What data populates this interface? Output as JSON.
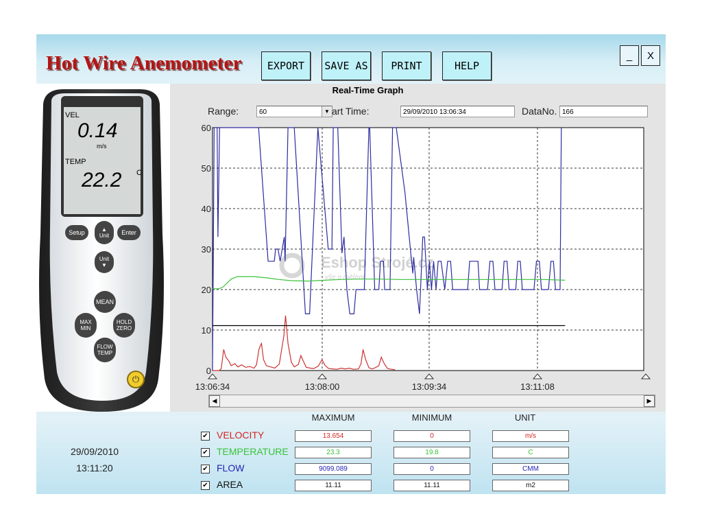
{
  "app": {
    "title": "Hot Wire Anemometer",
    "minimize_label": "_",
    "close_label": "X"
  },
  "toolbar": {
    "export_label": "EXPORT",
    "saveas_label": "SAVE AS",
    "print_label": "PRINT",
    "help_label": "HELP"
  },
  "device": {
    "vel_label": "VEL",
    "vel_value": "0.14",
    "vel_unit": "m/s",
    "temp_label": "TEMP",
    "temp_value": "22.2",
    "temp_unit": "C",
    "btn_setup": "Setup",
    "btn_unit": "Unit",
    "btn_enter": "Enter",
    "btn_unit2": "Unit",
    "btn_mean": "MEAN",
    "btn_maxmin_1": "MAX",
    "btn_maxmin_2": "MIN",
    "btn_hold_1": "HOLD",
    "btn_hold_2": "ZERO",
    "btn_flow_1": "FLOW",
    "btn_flow_2": "TEMP",
    "date": "29/09/2010",
    "time": "13:11:20"
  },
  "graph": {
    "title": "Real-Time Graph",
    "range_label": "Range:",
    "range_value": "60",
    "start_label": "art Time:",
    "start_value": "29/09/2010 13:06:34",
    "datano_label": "DataNo.",
    "datano_value": "166"
  },
  "watermark": {
    "name": "Eshop Strojé.cz",
    "tagline": "vše o měření"
  },
  "chart_data": {
    "type": "line",
    "ylim": [
      0,
      60
    ],
    "yticks": [
      "0",
      "10",
      "20",
      "30",
      "40",
      "50",
      "60"
    ],
    "xticks": [
      "13:06:34",
      "13:08:00",
      "13:09:34",
      "13:11:08"
    ],
    "grid": true,
    "series": [
      {
        "name": "FLOW",
        "color": "#2b2ba0",
        "values": [
          [
            0,
            0
          ],
          [
            0.4,
            60
          ],
          [
            1.1,
            60
          ],
          [
            1.3,
            33
          ],
          [
            1.7,
            60
          ],
          [
            2,
            60
          ],
          [
            11.1,
            60
          ],
          [
            13.4,
            27
          ],
          [
            14.9,
            27
          ],
          [
            15.2,
            30
          ],
          [
            15.8,
            30
          ],
          [
            16.3,
            27
          ],
          [
            17.3,
            33
          ],
          [
            17.5,
            27
          ],
          [
            18.2,
            60
          ],
          [
            19.5,
            60
          ],
          [
            19.7,
            60
          ],
          [
            22.4,
            14
          ],
          [
            23.4,
            14
          ],
          [
            25.4,
            60
          ],
          [
            27.9,
            30
          ],
          [
            28.8,
            30
          ],
          [
            29.1,
            60
          ],
          [
            29.7,
            60
          ],
          [
            30.2,
            60
          ],
          [
            31.2,
            29
          ],
          [
            31.7,
            33
          ],
          [
            32.4,
            20
          ],
          [
            33.1,
            14
          ],
          [
            34.1,
            14
          ],
          [
            34.6,
            20
          ],
          [
            36.6,
            20
          ],
          [
            37.7,
            60
          ],
          [
            37.9,
            60
          ],
          [
            39.1,
            20
          ],
          [
            40.1,
            20
          ],
          [
            40.5,
            27
          ],
          [
            41.2,
            27
          ],
          [
            41.5,
            20
          ],
          [
            42.8,
            20
          ],
          [
            43.4,
            60
          ],
          [
            43.9,
            60
          ],
          [
            44.3,
            60
          ],
          [
            46.4,
            44
          ],
          [
            47.8,
            29
          ],
          [
            48.3,
            24
          ],
          [
            48.5,
            28
          ],
          [
            49.2,
            20
          ],
          [
            49.9,
            14
          ],
          [
            50.7,
            33
          ],
          [
            51.1,
            33
          ],
          [
            51.8,
            20
          ],
          [
            52.3,
            27
          ],
          [
            52.8,
            20
          ],
          [
            53.3,
            27
          ],
          [
            53.9,
            20
          ],
          [
            54.4,
            27
          ],
          [
            55.1,
            27
          ],
          [
            56,
            20
          ],
          [
            56.7,
            27
          ],
          [
            57.4,
            27
          ],
          [
            57.9,
            20
          ],
          [
            61.5,
            20
          ],
          [
            62,
            27
          ],
          [
            64,
            27
          ],
          [
            64.4,
            20
          ],
          [
            66.3,
            20
          ],
          [
            66.9,
            27
          ],
          [
            67.6,
            27
          ],
          [
            68.1,
            20
          ],
          [
            69.8,
            20
          ],
          [
            70.3,
            27
          ],
          [
            71,
            27
          ],
          [
            71.5,
            20
          ],
          [
            73.1,
            20
          ],
          [
            73.6,
            27
          ],
          [
            74.2,
            27
          ],
          [
            74.7,
            20
          ],
          [
            77.5,
            20
          ],
          [
            78.1,
            27
          ],
          [
            78.8,
            27
          ],
          [
            79.3,
            20
          ],
          [
            81,
            20
          ],
          [
            81.6,
            27
          ],
          [
            82.2,
            27
          ],
          [
            82.7,
            20
          ],
          [
            83.8,
            20
          ],
          [
            84.1,
            60
          ]
        ]
      },
      {
        "name": "TEMPERATURE",
        "color": "#39c239",
        "values": [
          [
            0,
            20.2
          ],
          [
            1.5,
            20.2
          ],
          [
            2.5,
            20.6
          ],
          [
            4.5,
            22.6
          ],
          [
            6,
            23.2
          ],
          [
            10,
            23.2
          ],
          [
            13,
            22.9
          ],
          [
            16,
            22.5
          ],
          [
            19,
            22.2
          ],
          [
            23,
            22.1
          ],
          [
            27,
            22.3
          ],
          [
            31,
            22.5
          ],
          [
            35,
            22.6
          ],
          [
            40,
            22.6
          ],
          [
            45,
            22.5
          ],
          [
            50,
            22.5
          ],
          [
            55,
            22.5
          ],
          [
            60,
            22.5
          ],
          [
            65,
            22.5
          ],
          [
            70,
            22.5
          ],
          [
            75,
            22.5
          ],
          [
            80,
            22.5
          ],
          [
            85,
            22.3
          ]
        ]
      },
      {
        "name": "VELOCITY",
        "color": "#cc3333",
        "values": [
          [
            0,
            0
          ],
          [
            1.6,
            0
          ],
          [
            2.1,
            0.5
          ],
          [
            2.7,
            5.2
          ],
          [
            3.2,
            3.3
          ],
          [
            3.9,
            2.4
          ],
          [
            4.5,
            1.2
          ],
          [
            5.4,
            1.7
          ],
          [
            6.1,
            0.9
          ],
          [
            7,
            1.4
          ],
          [
            8,
            0.8
          ],
          [
            9,
            1
          ],
          [
            10,
            0.6
          ],
          [
            10.6,
            1.4
          ],
          [
            11.2,
            5.3
          ],
          [
            11.8,
            6.7
          ],
          [
            12.3,
            2.7
          ],
          [
            13,
            1.2
          ],
          [
            14,
            0.9
          ],
          [
            15,
            0.6
          ],
          [
            16.1,
            1.6
          ],
          [
            17.2,
            8.6
          ],
          [
            17.6,
            13.6
          ],
          [
            18.2,
            6.7
          ],
          [
            19,
            2.1
          ],
          [
            19.7,
            0.9
          ],
          [
            20.7,
            1.5
          ],
          [
            21.3,
            3.7
          ],
          [
            21.9,
            2.3
          ],
          [
            22.6,
            0.8
          ],
          [
            23.6,
            0.6
          ],
          [
            24.4,
            0.5
          ],
          [
            25.5,
            1.1
          ],
          [
            26.4,
            2.7
          ],
          [
            27.1,
            1.3
          ],
          [
            28,
            0.5
          ],
          [
            29,
            0.4
          ],
          [
            30,
            0.3
          ],
          [
            31,
            0.6
          ],
          [
            32,
            0.4
          ],
          [
            33,
            0.6
          ],
          [
            34,
            0.3
          ],
          [
            35.2,
            0.4
          ],
          [
            35.8,
            1.7
          ],
          [
            36.3,
            5.2
          ],
          [
            36.9,
            2.8
          ],
          [
            37.7,
            0.7
          ],
          [
            38.5,
            0.4
          ],
          [
            39.2,
            0.7
          ],
          [
            40.1,
            1.2
          ],
          [
            40.7,
            3.3
          ],
          [
            41.4,
            1.7
          ],
          [
            42.2,
            0.5
          ],
          [
            43.2,
            0.3
          ],
          [
            44,
            0.2
          ]
        ]
      },
      {
        "name": "AREA",
        "color": "#000000",
        "values": [
          [
            0,
            11.11
          ],
          [
            85,
            11.11
          ]
        ]
      }
    ]
  },
  "stats": {
    "col_max": "MAXIMUM",
    "col_min": "MINIMUM",
    "col_unit": "UNIT",
    "rows": [
      {
        "name": "VELOCITY",
        "max": "13.654",
        "min": "0",
        "unit": "m/s",
        "color": "#d22424",
        "check": "✔"
      },
      {
        "name": "TEMPERATURE",
        "max": "23.3",
        "min": "19.8",
        "unit": "C",
        "color": "#39c239",
        "check": "✔"
      },
      {
        "name": "FLOW",
        "max": "9099.089",
        "min": "0",
        "unit": "CMM",
        "color": "#2424b4",
        "check": "✔"
      },
      {
        "name": "AREA",
        "max": "11.11",
        "min": "11.11",
        "unit": "m2",
        "color": "#111111",
        "check": "✔"
      }
    ]
  }
}
